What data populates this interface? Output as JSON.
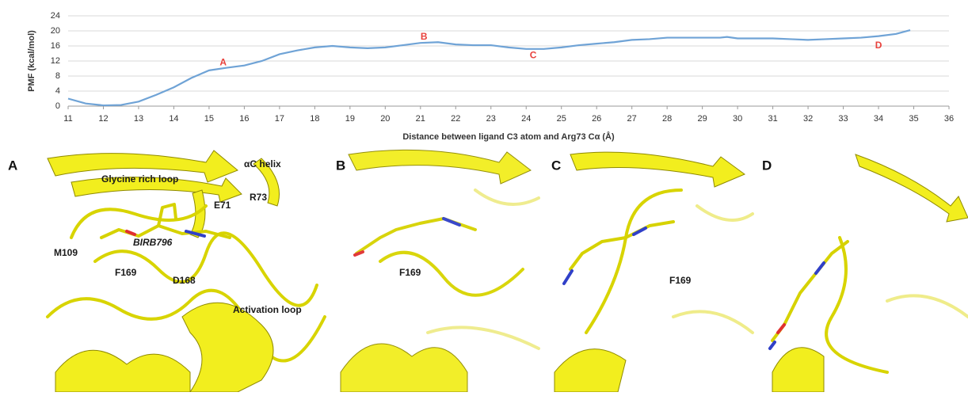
{
  "chart_data": {
    "type": "line",
    "y_label": "PMF (kcal/mol)",
    "x_label": "Distance between ligand C3 atom and Arg73 Cα (Å)",
    "x": [
      11,
      11.5,
      12,
      12.5,
      13,
      13.5,
      14,
      14.5,
      15,
      15.5,
      16,
      16.5,
      17,
      17.5,
      18,
      18.5,
      19,
      19.5,
      20,
      20.5,
      21,
      21.5,
      22,
      22.5,
      23,
      23.5,
      24,
      24.5,
      25,
      25.5,
      26,
      26.5,
      27,
      27.5,
      28,
      28.5,
      29,
      29.5,
      29.7,
      30,
      30.5,
      31,
      31.5,
      32,
      32.5,
      33,
      33.5,
      34,
      34.5,
      34.9
    ],
    "series": [
      {
        "color": "#6fa3d6",
        "values": [
          2,
          0.7,
          0.2,
          0.3,
          1.2,
          3,
          5,
          7.5,
          9.5,
          10.2,
          10.8,
          12,
          13.8,
          14.8,
          15.6,
          16,
          15.6,
          15.4,
          15.6,
          16.2,
          16.8,
          17,
          16.4,
          16.2,
          16.2,
          15.6,
          15.2,
          15.2,
          15.6,
          16.2,
          16.6,
          17,
          17.6,
          17.8,
          18.2,
          18.2,
          18.2,
          18.2,
          18.4,
          18,
          18,
          18,
          17.8,
          17.6,
          17.8,
          18,
          18.2,
          18.6,
          19.2,
          20.2
        ]
      }
    ],
    "annotations": [
      {
        "text": "A",
        "x": 15.4,
        "y": 11.5
      },
      {
        "text": "B",
        "x": 21.1,
        "y": 18.4
      },
      {
        "text": "C",
        "x": 24.2,
        "y": 13.4
      },
      {
        "text": "D",
        "x": 34,
        "y": 16
      }
    ],
    "annotation_color": "#e8413c",
    "xlim": [
      11,
      36
    ],
    "xticks": [
      11,
      12,
      13,
      14,
      15,
      16,
      17,
      18,
      19,
      20,
      21,
      22,
      23,
      24,
      25,
      26,
      27,
      28,
      29,
      30,
      31,
      32,
      33,
      34,
      35,
      36
    ],
    "ylim": [
      0,
      24
    ],
    "yticks": [
      0,
      4,
      8,
      12,
      16,
      20,
      24
    ],
    "grid": true
  },
  "panels": [
    {
      "letter": "A",
      "labels": [
        "Glycine rich loop",
        "αC helix",
        "R73",
        "E71",
        "BIRB796",
        "M109",
        "F169",
        "D168",
        "Activation loop"
      ]
    },
    {
      "letter": "B",
      "labels": [
        "F169"
      ]
    },
    {
      "letter": "C",
      "labels": [
        "F169"
      ]
    },
    {
      "letter": "D",
      "labels": []
    }
  ]
}
